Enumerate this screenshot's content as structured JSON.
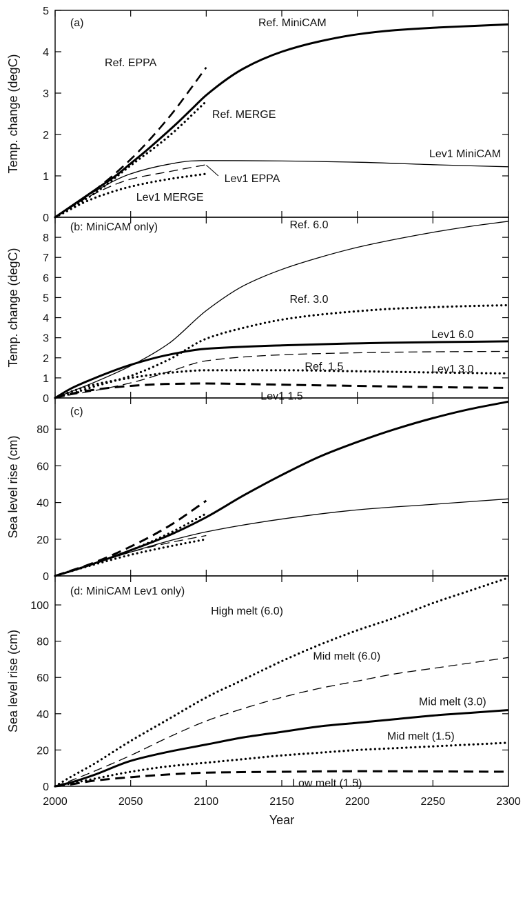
{
  "chart_data": [
    {
      "panel": "(a)",
      "type": "line",
      "ylabel": "Temp. change  (degC)",
      "xlim": [
        2000,
        2300
      ],
      "ylim": [
        0,
        5
      ],
      "yticks": [
        "0",
        "1",
        "2",
        "3",
        "4",
        "5"
      ],
      "series": [
        {
          "style": "thick-solid",
          "x": [
            2000,
            2010,
            2020,
            2030,
            2040,
            2050,
            2060,
            2070,
            2080,
            2090,
            2100,
            2125,
            2150,
            2175,
            2200,
            2225,
            2250,
            2275,
            2300
          ],
          "y": [
            0,
            0.25,
            0.5,
            0.75,
            1.0,
            1.3,
            1.6,
            1.92,
            2.25,
            2.6,
            2.95,
            3.6,
            4.0,
            4.25,
            4.42,
            4.52,
            4.58,
            4.62,
            4.66
          ]
        },
        {
          "style": "dashed",
          "x": [
            2000,
            2025,
            2050,
            2075,
            2100
          ],
          "y": [
            0,
            0.62,
            1.4,
            2.4,
            3.62
          ]
        },
        {
          "style": "dotted",
          "x": [
            2000,
            2025,
            2050,
            2075,
            2100
          ],
          "y": [
            0,
            0.55,
            1.25,
            1.95,
            2.8
          ]
        },
        {
          "style": "thin-solid",
          "x": [
            2000,
            2025,
            2050,
            2075,
            2090,
            2100,
            2150,
            2200,
            2250,
            2300
          ],
          "y": [
            0,
            0.6,
            1.05,
            1.28,
            1.36,
            1.37,
            1.36,
            1.33,
            1.27,
            1.22
          ]
        },
        {
          "style": "thin-dashed",
          "x": [
            2000,
            2025,
            2050,
            2075,
            2100
          ],
          "y": [
            0,
            0.55,
            0.92,
            1.1,
            1.27
          ]
        },
        {
          "style": "dotted",
          "x": [
            2000,
            2025,
            2050,
            2075,
            2100
          ],
          "y": [
            0,
            0.45,
            0.74,
            0.92,
            1.05
          ]
        }
      ],
      "annotations": [
        {
          "text": "(a)",
          "x": 2010,
          "y": 4.72,
          "role": "panel"
        },
        {
          "text": "Ref. MiniCAM",
          "x": 2157,
          "y": 4.72,
          "anchor": "middle"
        },
        {
          "text": "Ref. EPPA",
          "x": 2050,
          "y": 3.75,
          "anchor": "middle"
        },
        {
          "text": "Ref. MERGE",
          "x": 2125,
          "y": 2.5,
          "anchor": "middle"
        },
        {
          "text": "Lev1 MiniCAM",
          "x": 2295,
          "y": 1.55,
          "anchor": "end"
        },
        {
          "text": "Lev1 EPPA",
          "x": 2112,
          "y": 0.95,
          "anchor": "start"
        },
        {
          "text": "Lev1 MERGE",
          "x": 2076,
          "y": 0.5,
          "anchor": "middle"
        }
      ],
      "leaders": [
        {
          "x1": 2108,
          "y1": 1.0,
          "x2": 2100,
          "y2": 1.26
        }
      ]
    },
    {
      "panel": "(b: MiniCAM only)",
      "type": "line",
      "ylabel": "Temp. change  (degC)",
      "xlim": [
        2000,
        2300
      ],
      "ylim": [
        0,
        9
      ],
      "yticks": [
        "0",
        "1",
        "2",
        "3",
        "4",
        "5",
        "6",
        "7",
        "8"
      ],
      "series": [
        {
          "style": "thin-solid",
          "x": [
            2000,
            2010,
            2025,
            2050,
            2075,
            2100,
            2125,
            2150,
            2175,
            2200,
            2225,
            2250,
            2275,
            2300
          ],
          "y": [
            0,
            0.3,
            0.75,
            1.6,
            2.7,
            4.35,
            5.6,
            6.4,
            7.0,
            7.5,
            7.9,
            8.25,
            8.55,
            8.8
          ]
        },
        {
          "style": "dotted",
          "x": [
            2000,
            2010,
            2025,
            2050,
            2075,
            2100,
            2125,
            2150,
            2175,
            2200,
            2225,
            2250,
            2275,
            2300
          ],
          "y": [
            0,
            0.2,
            0.55,
            1.1,
            1.9,
            2.95,
            3.5,
            3.9,
            4.15,
            4.32,
            4.45,
            4.52,
            4.58,
            4.62
          ]
        },
        {
          "style": "thick-solid",
          "x": [
            2000,
            2010,
            2025,
            2050,
            2075,
            2100,
            2150,
            2200,
            2250,
            2300
          ],
          "y": [
            0,
            0.45,
            0.95,
            1.65,
            2.15,
            2.45,
            2.62,
            2.72,
            2.78,
            2.82
          ]
        },
        {
          "style": "thin-dashed",
          "x": [
            2000,
            2010,
            2025,
            2050,
            2075,
            2100,
            2150,
            2200,
            2250,
            2300
          ],
          "y": [
            0,
            0.15,
            0.35,
            0.75,
            1.3,
            1.85,
            2.15,
            2.25,
            2.3,
            2.32
          ]
        },
        {
          "style": "dotted",
          "x": [
            2000,
            2010,
            2025,
            2050,
            2075,
            2100,
            2150,
            2200,
            2250,
            2300
          ],
          "y": [
            0,
            0.3,
            0.65,
            1.0,
            1.25,
            1.38,
            1.38,
            1.33,
            1.27,
            1.22
          ]
        },
        {
          "style": "thick-dashed",
          "x": [
            2000,
            2010,
            2025,
            2050,
            2075,
            2100,
            2150,
            2200,
            2250,
            2300
          ],
          "y": [
            0,
            0.2,
            0.4,
            0.6,
            0.7,
            0.72,
            0.66,
            0.6,
            0.54,
            0.5
          ]
        }
      ],
      "annotations": [
        {
          "text": "(b: MiniCAM only)",
          "x": 2010,
          "y": 8.55,
          "role": "panel"
        },
        {
          "text": "Ref. 6.0",
          "x": 2168,
          "y": 8.65,
          "anchor": "middle"
        },
        {
          "text": "Ref. 3.0",
          "x": 2168,
          "y": 4.95,
          "anchor": "middle"
        },
        {
          "text": "Lev1 6.0",
          "x": 2263,
          "y": 3.2,
          "anchor": "middle"
        },
        {
          "text": "Ref. 1.5",
          "x": 2178,
          "y": 1.6,
          "anchor": "middle"
        },
        {
          "text": "Lev1 3.0",
          "x": 2263,
          "y": 1.48,
          "anchor": "middle"
        },
        {
          "text": "Lev1 1.5",
          "x": 2150,
          "y": 0.12,
          "anchor": "middle"
        }
      ]
    },
    {
      "panel": "(c)",
      "type": "line",
      "ylabel": "Sea level rise  (cm)",
      "xlim": [
        2000,
        2300
      ],
      "ylim": [
        0,
        97
      ],
      "yticks": [
        "0",
        "20",
        "40",
        "60",
        "80"
      ],
      "series": [
        {
          "style": "thick-solid",
          "x": [
            2000,
            2010,
            2025,
            2050,
            2075,
            2100,
            2125,
            2150,
            2175,
            2200,
            2225,
            2250,
            2275,
            2300
          ],
          "y": [
            0,
            2.5,
            6.5,
            14,
            22,
            32,
            44,
            55,
            65,
            73,
            80,
            86,
            91,
            95
          ]
        },
        {
          "style": "thick-dashed",
          "x": [
            2000,
            2025,
            2050,
            2075,
            2100
          ],
          "y": [
            0,
            7,
            16,
            27,
            41
          ]
        },
        {
          "style": "dotted",
          "x": [
            2000,
            2025,
            2050,
            2075,
            2100
          ],
          "y": [
            0,
            6.5,
            14,
            23,
            34
          ]
        },
        {
          "style": "thin-solid",
          "x": [
            2000,
            2010,
            2025,
            2050,
            2075,
            2100,
            2150,
            2200,
            2250,
            2300
          ],
          "y": [
            0,
            2.5,
            6.5,
            13,
            19,
            24,
            31,
            36,
            39,
            42
          ]
        },
        {
          "style": "thin-dashed",
          "x": [
            2000,
            2025,
            2050,
            2075,
            2100
          ],
          "y": [
            0,
            6.5,
            13,
            18,
            22
          ]
        },
        {
          "style": "dotted",
          "x": [
            2000,
            2025,
            2050,
            2075,
            2100
          ],
          "y": [
            0,
            6,
            11.5,
            16,
            20
          ]
        }
      ],
      "annotations": [
        {
          "text": "(c)",
          "x": 2010,
          "y": 90,
          "role": "panel"
        }
      ]
    },
    {
      "panel": "(d: MiniCAM Lev1 only)",
      "type": "line",
      "ylabel": "Sea level rise  (cm)",
      "xlabel": "Year",
      "xlim": [
        2000,
        2300
      ],
      "ylim": [
        0,
        116
      ],
      "xticks": [
        "2000",
        "2050",
        "2100",
        "2150",
        "2200",
        "2250",
        "2300"
      ],
      "yticks": [
        "0",
        "20",
        "40",
        "60",
        "80",
        "100"
      ],
      "series": [
        {
          "style": "dotted",
          "x": [
            2000,
            2010,
            2025,
            2050,
            2075,
            2100,
            2125,
            2150,
            2175,
            2200,
            2225,
            2250,
            2275,
            2300
          ],
          "y": [
            0,
            5,
            12,
            25,
            37,
            49,
            59,
            69,
            78,
            86,
            93,
            101,
            108,
            115
          ]
        },
        {
          "style": "thin-dashed",
          "x": [
            2000,
            2010,
            2025,
            2050,
            2075,
            2100,
            2125,
            2150,
            2175,
            2200,
            2225,
            2250,
            2275,
            2300
          ],
          "y": [
            0,
            3,
            8,
            17,
            27,
            36,
            43,
            49,
            54,
            58,
            62,
            65,
            68,
            71
          ]
        },
        {
          "style": "thick-solid",
          "x": [
            2000,
            2010,
            2025,
            2050,
            2075,
            2100,
            2125,
            2150,
            2175,
            2200,
            2225,
            2250,
            2275,
            2300
          ],
          "y": [
            0,
            2,
            6,
            14,
            19,
            23,
            27,
            30,
            33,
            35,
            37,
            39,
            40.5,
            42
          ]
        },
        {
          "style": "dotted",
          "x": [
            2000,
            2010,
            2025,
            2050,
            2075,
            2100,
            2125,
            2150,
            2175,
            2200,
            2225,
            2250,
            2275,
            2300
          ],
          "y": [
            0,
            1.5,
            4,
            8,
            11,
            13,
            15,
            17,
            18.5,
            20,
            21,
            22,
            23,
            24
          ]
        },
        {
          "style": "thick-dashed",
          "x": [
            2000,
            2010,
            2025,
            2050,
            2075,
            2100,
            2150,
            2200,
            2250,
            2300
          ],
          "y": [
            0,
            1,
            3,
            5,
            6.5,
            7.5,
            8,
            8.3,
            8.2,
            8
          ]
        }
      ],
      "annotations": [
        {
          "text": "(d: MiniCAM Lev1 only)",
          "x": 2010,
          "y": 108,
          "role": "panel"
        },
        {
          "text": "High melt (6.0)",
          "x": 2127,
          "y": 97,
          "anchor": "middle"
        },
        {
          "text": "Mid melt (6.0)",
          "x": 2193,
          "y": 72,
          "anchor": "middle"
        },
        {
          "text": "Mid melt (3.0)",
          "x": 2263,
          "y": 47,
          "anchor": "middle"
        },
        {
          "text": "Mid melt (1.5)",
          "x": 2242,
          "y": 28,
          "anchor": "middle"
        },
        {
          "text": "Low melt (1.5)",
          "x": 2180,
          "y": 2,
          "anchor": "middle"
        }
      ]
    }
  ]
}
